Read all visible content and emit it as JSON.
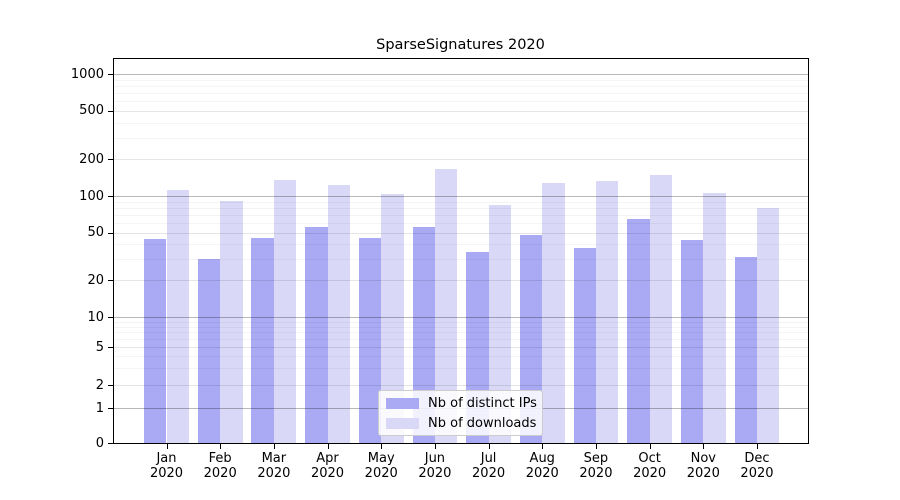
{
  "chart_data": {
    "type": "bar",
    "title": "SparseSignatures 2020",
    "categories": [
      "Jan",
      "Feb",
      "Mar",
      "Apr",
      "May",
      "Jun",
      "Jul",
      "Aug",
      "Sep",
      "Oct",
      "Nov",
      "Dec"
    ],
    "year_label": "2020",
    "series": [
      {
        "name": "Nb of distinct IPs",
        "color": "#a9a9f4",
        "values": [
          44,
          30,
          45,
          55,
          45,
          56,
          34,
          48,
          37,
          65,
          43,
          31
        ]
      },
      {
        "name": "Nb of downloads",
        "color": "#d9d9f7",
        "values": [
          112,
          91,
          135,
          122,
          104,
          168,
          84,
          129,
          132,
          148,
          105,
          80
        ]
      }
    ],
    "yscale": "log-like (symlog), 0 at baseline",
    "yticks": [
      0,
      1,
      2,
      5,
      10,
      20,
      50,
      100,
      200,
      500,
      1000
    ],
    "ylim": [
      0,
      1000
    ],
    "grid": "horizontal, drawn above bars; darker lines at 1/10/100/1000",
    "legend_position": "lower center"
  },
  "ui": {
    "background_color": "#ffffff",
    "decade_grid_color": "rgba(0,0,0,0.28)",
    "mid_grid_color": "rgba(0,0,0,0.10)",
    "minor_grid_color": "rgba(0,0,0,0.045)"
  }
}
